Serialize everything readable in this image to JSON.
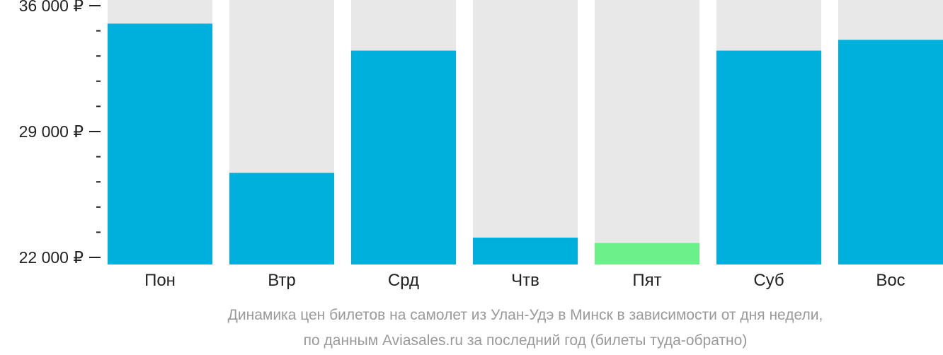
{
  "chart_data": {
    "type": "bar",
    "categories": [
      "Пон",
      "Втр",
      "Срд",
      "Чтв",
      "Пят",
      "Суб",
      "Вос"
    ],
    "values": [
      35000,
      26700,
      33500,
      23100,
      22800,
      33500,
      34100
    ],
    "highlight_index": 4,
    "ylim": [
      22000,
      36000
    ],
    "y_ticks": [
      {
        "value": 36000,
        "label": "36 000 ₽"
      },
      {
        "value": 29000,
        "label": "29 000 ₽"
      },
      {
        "value": 22000,
        "label": "22 000 ₽"
      }
    ],
    "minor_tick_step": 1400,
    "caption_lines": [
      "Динамика цен билетов на самолет из Улан-Удэ в Минск в зависимости от дня недели,",
      "по данным Aviasales.ru за последний год (билеты туда-обратно)"
    ],
    "colors": {
      "bar": "#00b0dc",
      "highlight": "#6cf08a",
      "background_bar": "#e8e8e8",
      "axis": "#222222",
      "caption": "#9a9a9a"
    }
  }
}
